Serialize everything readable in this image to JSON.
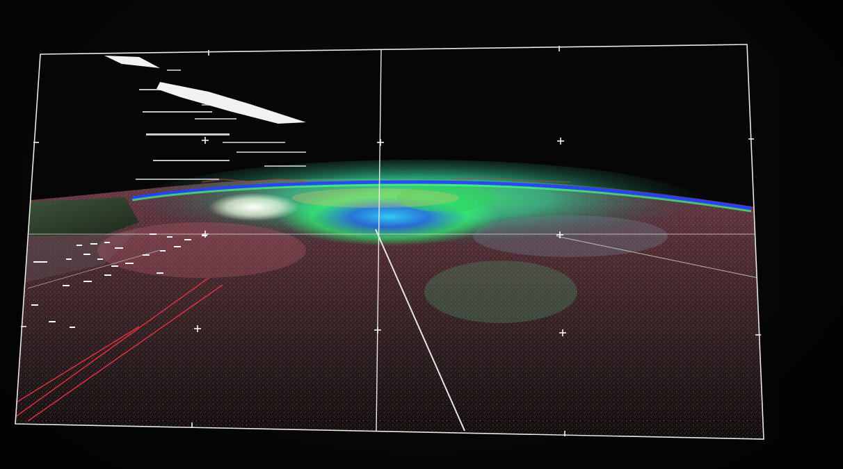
{
  "photo": {
    "subject": "photo-of-display-showing-3d-point-cloud-terrain-visualization",
    "colors": {
      "background": "#050505",
      "frame": "#e8e8e8",
      "terrain_dark": "#2a1a1c",
      "terrain_red": "#c04858",
      "terrain_green": "#40ff70",
      "terrain_blue": "#2040ff",
      "terrain_yellow": "#e0d060",
      "highlight": "#ffffff"
    }
  }
}
